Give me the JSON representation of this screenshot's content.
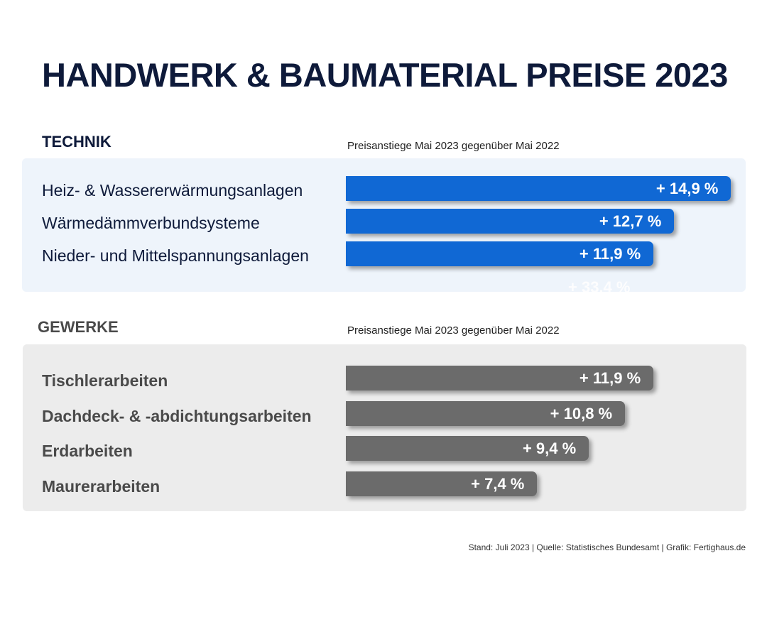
{
  "title": "HANDWERK & BAUMATERIAL PREISE 2023",
  "footer": "Stand: Juli 2023 | Quelle: Statistisches Bundesamt | Grafik: Fertighaus.de",
  "colors": {
    "technik_bar": "#1068d4",
    "technik_panel": "#eef4fb",
    "technik_label": "#0e1a3a",
    "gewerke_bar": "#6b6b6b",
    "gewerke_panel": "#ececec",
    "gewerke_label": "#4a4a4a"
  },
  "ghost_label": "+ 33,4 %",
  "chart_data": [
    {
      "type": "bar",
      "orientation": "horizontal",
      "section": "TECHNIK",
      "subtitle": "Preisanstiege Mai 2023 gegenüber Mai 2022",
      "categories": [
        "Heiz- & Wassererwärmungsanlagen",
        "Wärmedämmverbundsysteme",
        "Nieder- und Mittelspannungsanlagen"
      ],
      "values": [
        14.9,
        12.7,
        11.9
      ],
      "labels": [
        "+ 14,9 %",
        "+ 12,7 %",
        "+ 11,9 %"
      ],
      "unit": "%",
      "grid": false
    },
    {
      "type": "bar",
      "orientation": "horizontal",
      "section": "GEWERKE",
      "subtitle": "Preisanstiege Mai 2023 gegenüber Mai 2022",
      "categories": [
        "Tischlerarbeiten",
        "Dachdeck- & -abdichtungsarbeiten",
        "Erdarbeiten",
        "Maurerarbeiten"
      ],
      "values": [
        11.9,
        10.8,
        9.4,
        7.4
      ],
      "labels": [
        "+ 11,9 %",
        "+ 10,8 %",
        "+ 9,4 %",
        "+ 7,4 %"
      ],
      "unit": "%",
      "grid": false
    }
  ]
}
